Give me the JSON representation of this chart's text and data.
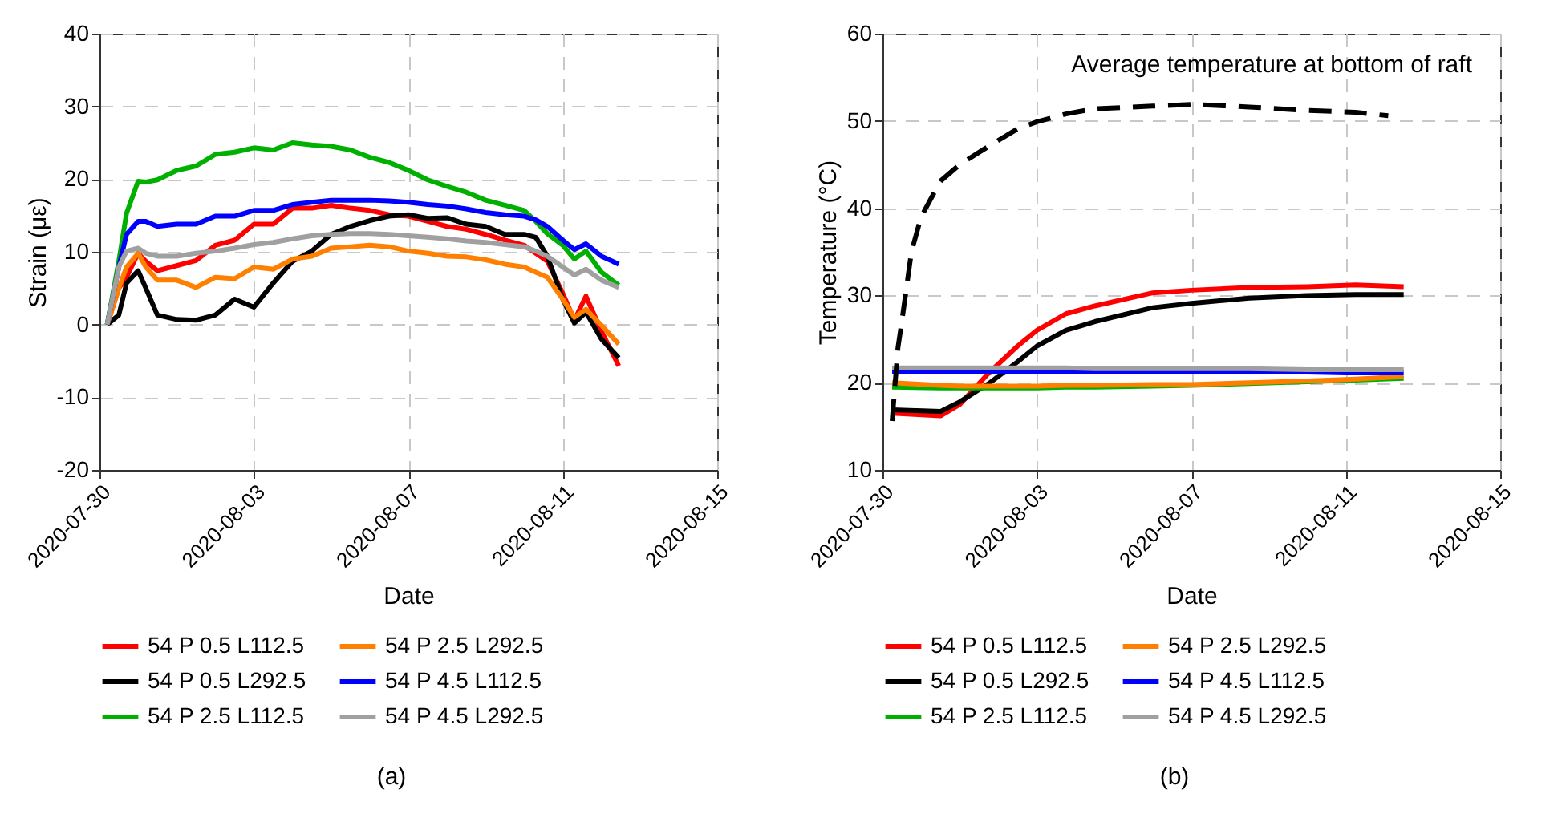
{
  "chart_data": [
    {
      "type": "line",
      "xlabel": "Date",
      "ylabel": "Strain (με)",
      "annotations": [
        "(a)"
      ],
      "xlim": [
        "2020-07-30",
        "2020-08-15"
      ],
      "xticks": [
        "2020-07-30",
        "2020-08-03",
        "2020-08-07",
        "2020-08-11",
        "2020-08-15"
      ],
      "ylim": [
        -20,
        40
      ],
      "yticks": [
        -20,
        -10,
        0,
        10,
        20,
        30,
        40
      ],
      "grid": true,
      "legend": "bottom",
      "x": [
        "2020-07-30T04:48",
        "2020-07-30T12:00",
        "2020-07-30T16:48",
        "2020-07-31T00:00",
        "2020-07-31T04:48",
        "2020-07-31T12:00",
        "2020-08-01",
        "2020-08-01T12:00",
        "2020-08-02",
        "2020-08-02T12:00",
        "2020-08-03",
        "2020-08-03T12:00",
        "2020-08-04",
        "2020-08-04T12:00",
        "2020-08-05",
        "2020-08-05T12:00",
        "2020-08-06",
        "2020-08-06T12:00",
        "2020-08-07",
        "2020-08-07T12:00",
        "2020-08-08",
        "2020-08-08T12:00",
        "2020-08-09",
        "2020-08-09T12:00",
        "2020-08-10",
        "2020-08-10T07:12",
        "2020-08-10T14:24",
        "2020-08-11",
        "2020-08-11T07:12",
        "2020-08-11T14:24",
        "2020-08-12",
        "2020-08-12T10:48"
      ],
      "series": [
        {
          "name": "54 P 0.5 L112.5",
          "color": "#ff0000",
          "values": [
            0,
            5,
            6.5,
            9.8,
            8.7,
            7.4,
            8.1,
            8.8,
            10.9,
            11.6,
            13.8,
            13.8,
            16,
            16,
            16.4,
            16,
            15.7,
            15.1,
            14.9,
            14.2,
            13.5,
            13.1,
            12.4,
            11.6,
            10.9,
            9.8,
            8.7,
            4.3,
            0.6,
            3.9,
            -0.9,
            -5.7
          ]
        },
        {
          "name": "54 P 0.5 L292.5",
          "color": "#000000",
          "values": [
            0,
            1.3,
            5.7,
            7.4,
            5,
            1.3,
            0.7,
            0.6,
            1.3,
            3.5,
            2.4,
            5.7,
            8.7,
            10.1,
            12.4,
            13.5,
            14.3,
            14.9,
            15.1,
            14.6,
            14.7,
            13.8,
            13.5,
            12.4,
            12.4,
            12,
            9.4,
            3.5,
            0.2,
            1.7,
            -2,
            -4.6
          ]
        },
        {
          "name": "54 P 2.5 L112.5",
          "color": "#00b000",
          "values": [
            0,
            8.7,
            15.3,
            19.7,
            19.6,
            19.9,
            21.2,
            21.8,
            23.4,
            23.7,
            24.3,
            24,
            25,
            24.7,
            24.5,
            24,
            23,
            22.3,
            21.2,
            19.9,
            19,
            18.2,
            17.1,
            16.4,
            15.7,
            14.2,
            12.5,
            10.9,
            9,
            10.1,
            7.2,
            5.4
          ]
        },
        {
          "name": "54 P 2.5 L292.5",
          "color": "#ff8000",
          "values": [
            0,
            5,
            7.9,
            9.8,
            7.9,
            6.1,
            6.1,
            5.1,
            6.5,
            6.3,
            7.9,
            7.6,
            9,
            9.4,
            10.5,
            10.7,
            10.9,
            10.7,
            10.1,
            9.8,
            9.4,
            9.3,
            8.9,
            8.3,
            7.9,
            7.2,
            6.5,
            3.5,
            1,
            2.1,
            -0.1,
            -2.7
          ]
        },
        {
          "name": "54 P 4.5 L112.5",
          "color": "#0000ff",
          "values": [
            0,
            7.9,
            12.4,
            14.2,
            14.2,
            13.5,
            13.8,
            13.8,
            14.9,
            14.9,
            15.7,
            15.7,
            16.5,
            16.8,
            17.1,
            17.1,
            17.1,
            17,
            16.8,
            16.5,
            16.3,
            15.9,
            15.4,
            15.1,
            14.9,
            14.4,
            13.5,
            11.6,
            10.3,
            11.1,
            9.4,
            8.3
          ]
        },
        {
          "name": "54 P 4.5 L292.5",
          "color": "#a0a0a0",
          "values": [
            0,
            7.9,
            10.1,
            10.5,
            9.8,
            9.4,
            9.4,
            9.8,
            10.1,
            10.5,
            11,
            11.3,
            11.8,
            12.2,
            12.4,
            12.5,
            12.5,
            12.4,
            12.2,
            12,
            11.8,
            11.5,
            11.3,
            11,
            10.7,
            10.1,
            9.4,
            7.9,
            6.8,
            7.6,
            6.1,
            5.1
          ]
        }
      ]
    },
    {
      "type": "line",
      "xlabel": "Date",
      "ylabel": "Temperature (°C)",
      "annotations": [
        "(b)"
      ],
      "xlim": [
        "2020-07-30",
        "2020-08-15"
      ],
      "xticks": [
        "2020-07-30",
        "2020-08-03",
        "2020-08-07",
        "2020-08-11",
        "2020-08-15"
      ],
      "ylim": [
        10,
        60
      ],
      "yticks": [
        10,
        20,
        30,
        40,
        50,
        60
      ],
      "grid": true,
      "legend": "bottom",
      "x": [
        "2020-07-30T06:00",
        "2020-07-31T12:00",
        "2020-08-01",
        "2020-08-01T18:00",
        "2020-08-02T12:00",
        "2020-08-03",
        "2020-08-03T18:00",
        "2020-08-04T12:00",
        "2020-08-06",
        "2020-08-07",
        "2020-08-08T12:00",
        "2020-08-10",
        "2020-08-11T06:00",
        "2020-08-12T12:00"
      ],
      "series": [
        {
          "name": "54 P 0.5 L112.5",
          "color": "#ff0000",
          "values": [
            16.5,
            16.2,
            17.5,
            21.1,
            24.2,
            26,
            27.9,
            28.8,
            30.3,
            30.6,
            30.9,
            31,
            31.2,
            31
          ]
        },
        {
          "name": "54 P 0.5 L292.5",
          "color": "#000000",
          "values": [
            16.9,
            16.7,
            17.8,
            19.9,
            22.4,
            24.2,
            26,
            27,
            28.6,
            29.1,
            29.7,
            30,
            30.1,
            30.1
          ]
        },
        {
          "name": "54 P 2.5 L112.5",
          "color": "#00b000",
          "values": [
            19.5,
            19.4,
            19.4,
            19.4,
            19.4,
            19.4,
            19.5,
            19.5,
            19.6,
            19.7,
            19.9,
            20.1,
            20.3,
            20.5
          ]
        },
        {
          "name": "54 P 2.5 L292.5",
          "color": "#ff8000",
          "values": [
            20,
            19.7,
            19.6,
            19.6,
            19.6,
            19.6,
            19.7,
            19.7,
            19.8,
            19.8,
            20,
            20.2,
            20.4,
            20.7
          ]
        },
        {
          "name": "54 P 4.5 L112.5",
          "color": "#0000ff",
          "values": [
            21.3,
            21.3,
            21.3,
            21.3,
            21.3,
            21.3,
            21.3,
            21.3,
            21.3,
            21.3,
            21.3,
            21.3,
            21.2,
            21.2
          ]
        },
        {
          "name": "54 P 4.5 L292.5",
          "color": "#a0a0a0",
          "values": [
            21.7,
            21.7,
            21.7,
            21.7,
            21.7,
            21.7,
            21.7,
            21.6,
            21.6,
            21.6,
            21.6,
            21.5,
            21.5,
            21.5
          ]
        },
        {
          "name": "Average temperature at bottom of raft",
          "color": "#000000",
          "line_style": "dashed",
          "x": [
            "2020-07-30T06:00",
            "2020-07-30T09:36",
            "2020-07-30T12:00",
            "2020-07-30T18:00",
            "2020-07-31",
            "2020-07-31T12:00",
            "2020-08-01",
            "2020-08-01T18:00",
            "2020-08-02T12:00",
            "2020-08-03",
            "2020-08-03T18:00",
            "2020-08-04T12:00",
            "2020-08-06",
            "2020-08-07",
            "2020-08-08T12:00",
            "2020-08-10",
            "2020-08-11T06:00",
            "2020-08-12T02:24"
          ],
          "values": [
            15.6,
            24,
            27,
            35,
            39,
            43.1,
            45,
            47.1,
            49.1,
            49.9,
            50.8,
            51.4,
            51.7,
            51.9,
            51.6,
            51.2,
            51,
            50.6
          ]
        }
      ]
    }
  ]
}
